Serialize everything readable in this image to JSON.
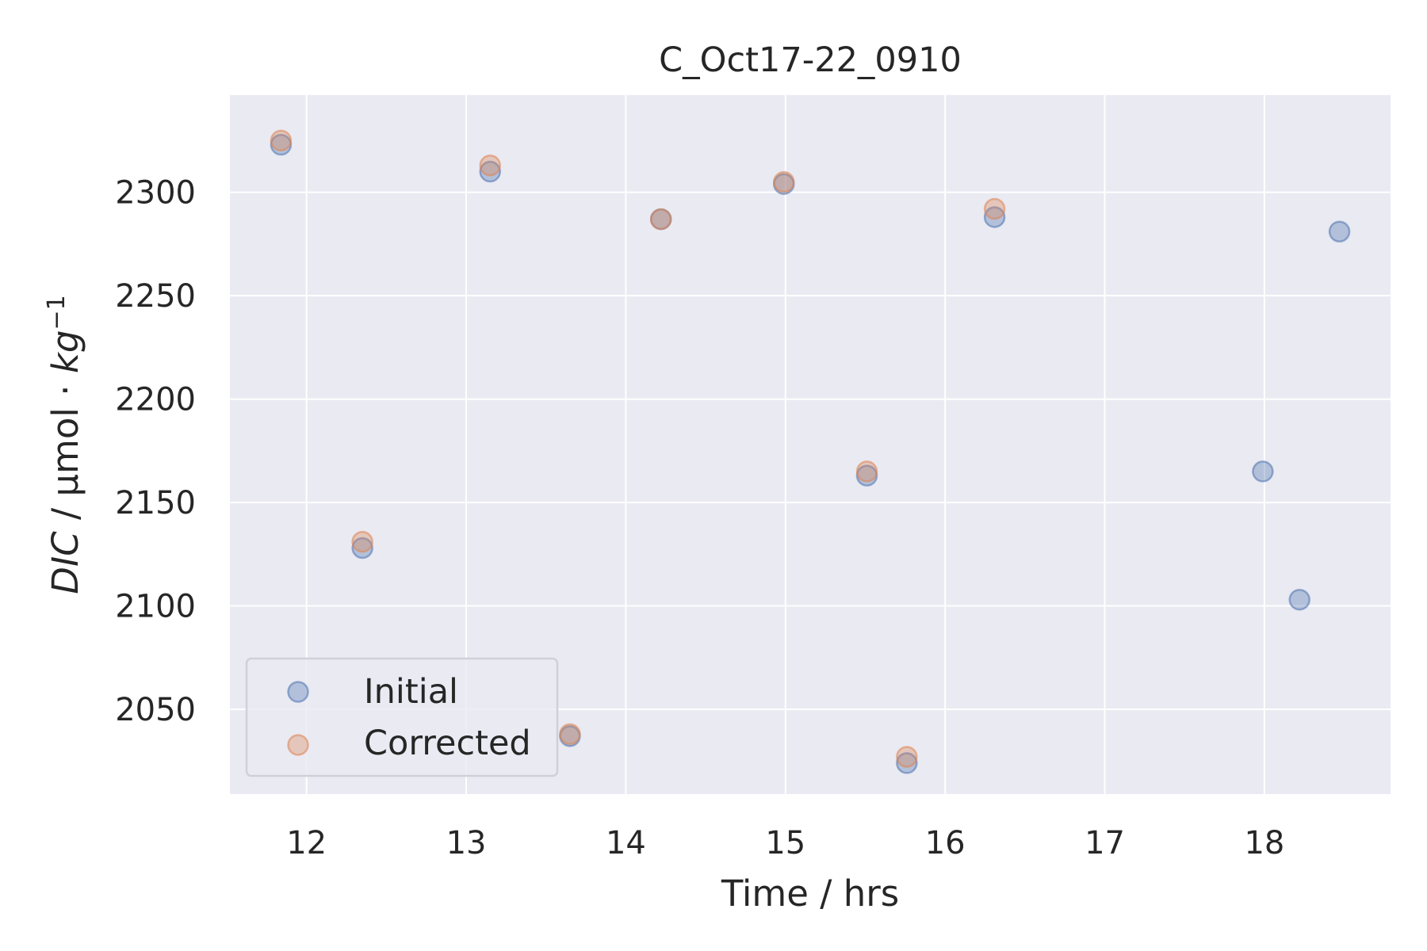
{
  "chart_data": {
    "type": "scatter",
    "title": "C_Oct17-22_0910",
    "xlabel": "Time / hrs",
    "ylabel": {
      "italic_part": "DIC",
      "mid": " / μmol · ",
      "italic_unit": "kg",
      "superscript": "−1"
    },
    "xlim": [
      11.52,
      18.79
    ],
    "ylim": [
      2009,
      2347
    ],
    "xticks": [
      12,
      13,
      14,
      15,
      16,
      17,
      18
    ],
    "yticks": [
      2050,
      2100,
      2150,
      2200,
      2250,
      2300
    ],
    "grid": true,
    "legend": {
      "placement": "lower-left"
    },
    "colors": {
      "background": "#eaeaf2",
      "grid": "#ffffff",
      "initial": "#4c72b0",
      "corrected": "#dd8452"
    },
    "series": [
      {
        "name": "Initial",
        "x": [
          11.84,
          12.35,
          13.15,
          13.65,
          14.22,
          14.99,
          15.51,
          15.76,
          16.31,
          17.99,
          18.22,
          18.47
        ],
        "y": [
          2323,
          2128,
          2310,
          2037,
          2287,
          2304,
          2163,
          2024,
          2288,
          2165,
          2103,
          2281
        ]
      },
      {
        "name": "Corrected",
        "x": [
          11.84,
          12.35,
          13.15,
          13.65,
          14.22,
          14.99,
          15.51,
          15.76,
          16.31
        ],
        "y": [
          2325,
          2131,
          2313,
          2038,
          2287,
          2305,
          2165,
          2027,
          2292
        ]
      }
    ]
  }
}
